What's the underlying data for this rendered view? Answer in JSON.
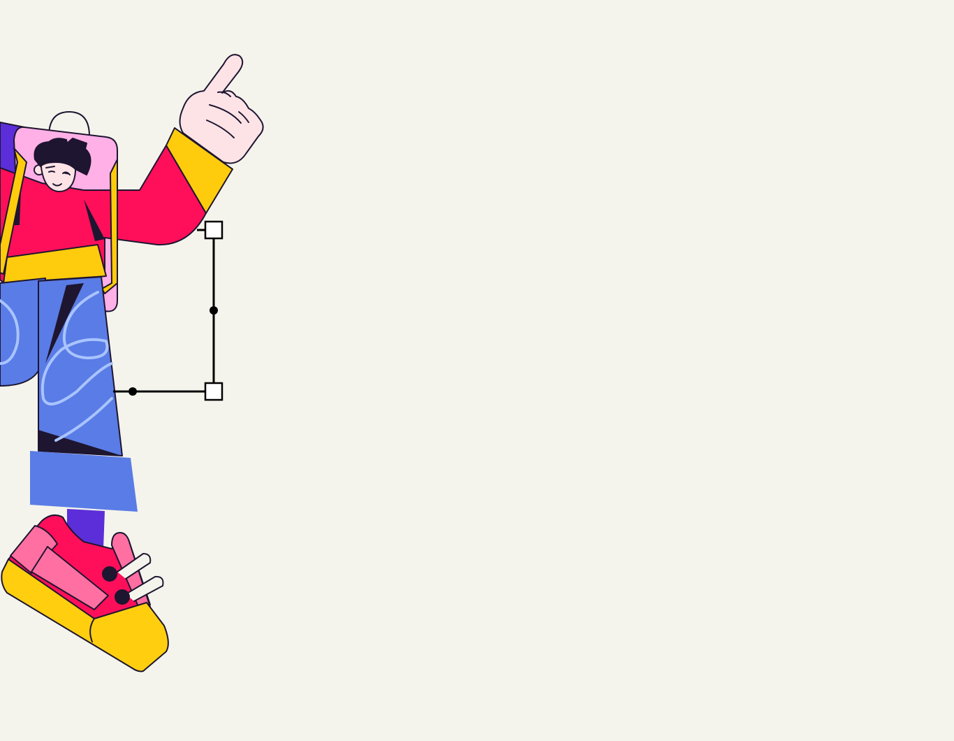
{
  "scene": {
    "subject": "illustrated-character",
    "pose": "pointing-up",
    "has_selection_bracket": true
  },
  "palette": {
    "background": "#F4F4EC",
    "outline": "#1E1530",
    "shirt": "#FF0F5A",
    "sleeve_cuff": "#FFCC0D",
    "backpack": "#FFB0E6",
    "strap": "#FFCC0D",
    "jeans": "#5A7CE6",
    "jeans_scribble": "#A9C4FF",
    "shadow": "#1E1530",
    "skin": "#FDE3E6",
    "hair": "#1E1530",
    "sock": "#5B2ED9",
    "shoe": "#FF0F5A",
    "shoe_panel": "#FF6FA2",
    "sole": "#FFCF0F",
    "bracket": "#000000",
    "handle_fill": "#FFFFFF"
  },
  "icons": {
    "character": "character-illustration",
    "hand": "pointing-hand-icon",
    "shoe": "sneaker-icon",
    "bracket": "selection-bracket"
  }
}
